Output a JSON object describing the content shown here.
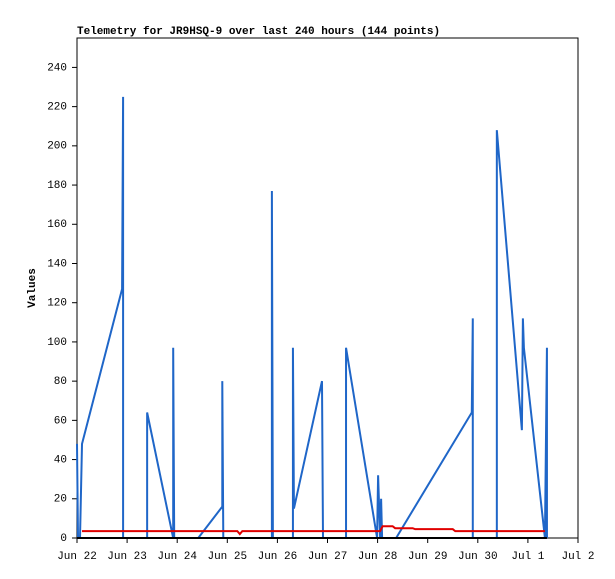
{
  "chart_data": {
    "type": "line",
    "title": "Telemetry for JR9HSQ-9 over last 240 hours (144 points)",
    "y_label": "Values",
    "xlim": [
      0,
      10
    ],
    "ylim": [
      0,
      255
    ],
    "xticks": [
      {
        "value": 0,
        "label": "Jun 22"
      },
      {
        "value": 1,
        "label": "Jun 23"
      },
      {
        "value": 2,
        "label": "Jun 24"
      },
      {
        "value": 3,
        "label": "Jun 25"
      },
      {
        "value": 4,
        "label": "Jun 26"
      },
      {
        "value": 5,
        "label": "Jun 27"
      },
      {
        "value": 6,
        "label": "Jun 28"
      },
      {
        "value": 7,
        "label": "Jun 29"
      },
      {
        "value": 8,
        "label": "Jun 30"
      },
      {
        "value": 9,
        "label": "Jul 1"
      },
      {
        "value": 10,
        "label": "Jul 2"
      }
    ],
    "yticks": [
      0,
      20,
      40,
      60,
      80,
      100,
      120,
      140,
      160,
      180,
      200,
      220,
      240
    ],
    "series": [
      {
        "color": "#1f66c8",
        "x": [
          0,
          0.02,
          0.06,
          0.1,
          0.9,
          0.92,
          0.92,
          1.4,
          1.4,
          1.92,
          1.92,
          1.94,
          2.42,
          2.9,
          2.9,
          2.92,
          3.89,
          3.89,
          3.91,
          4.31,
          4.31,
          4.33,
          4.89,
          4.91,
          5.37,
          5.37,
          5.99,
          6.01,
          6.05,
          6.07,
          6.09,
          6.37,
          7.88,
          7.9,
          7.9,
          8.38,
          8.38,
          8.88,
          8.9,
          8.92,
          9.34,
          9.38,
          9.38
        ],
        "values": [
          48,
          0,
          0,
          48,
          127,
          225,
          0,
          0,
          64,
          0,
          97,
          0,
          0,
          16,
          80,
          0,
          0,
          177,
          0,
          0,
          97,
          15,
          80,
          0,
          0,
          97,
          0,
          32,
          0,
          20,
          0,
          0,
          64,
          112,
          0,
          0,
          208,
          55,
          112,
          97,
          0,
          97,
          0
        ]
      },
      {
        "color": "#e00000",
        "x": [
          0.1,
          3.2,
          3.25,
          3.3,
          6.05,
          6.1,
          6.3,
          6.35,
          6.7,
          6.75,
          7.5,
          7.55,
          9.34
        ],
        "values": [
          3.5,
          3.5,
          2,
          3.5,
          3.5,
          6,
          6,
          5,
          5,
          4.5,
          4.5,
          3.5,
          3.5
        ]
      },
      {
        "color": "#000000",
        "x": [
          0,
          9.38
        ],
        "values": [
          0,
          0
        ]
      }
    ]
  }
}
